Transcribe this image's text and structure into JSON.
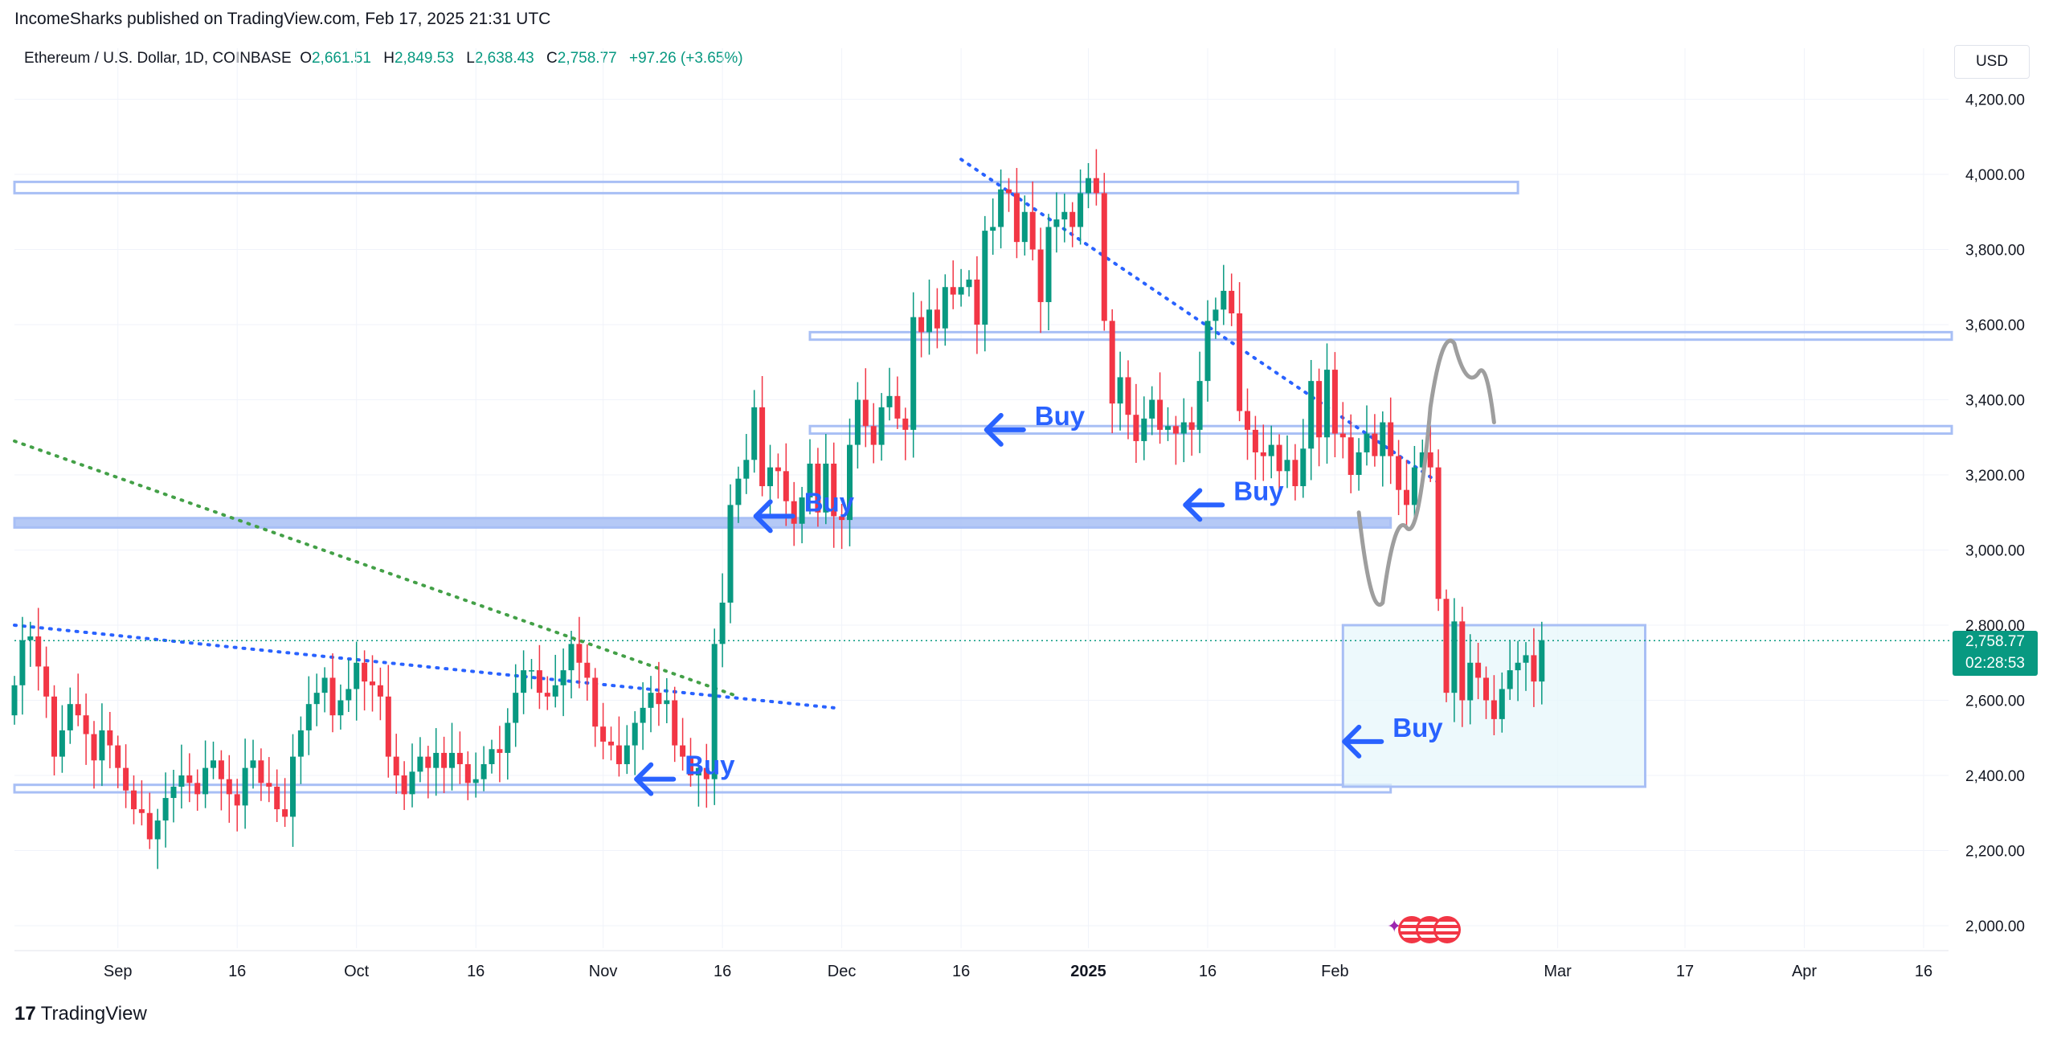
{
  "header": {
    "published": "IncomeSharks published on TradingView.com, Feb 17, 2025 21:31 UTC",
    "symbol": "Ethereum / U.S. Dollar, 1D, COINBASE",
    "open_label": "O",
    "open": "2,661.51",
    "high_label": "H",
    "high": "2,849.53",
    "low_label": "L",
    "low": "2,638.43",
    "close_label": "C",
    "close": "2,758.77",
    "change": "+97.26 (+3.65%)"
  },
  "currency": "USD",
  "price_badge": {
    "price": "2,758.77",
    "countdown": "02:28:53"
  },
  "footer": {
    "logo_text": "TradingView"
  },
  "colors": {
    "up": "#089981",
    "down": "#f23645",
    "zone": "#a8bff5",
    "arrow": "#2962ff",
    "path": "#9e9e9e",
    "bg": "#ffffff"
  },
  "chart_data": {
    "type": "candlestick",
    "ylim": [
      1950,
      4280
    ],
    "yticks": [
      2000,
      2200,
      2400,
      2600,
      2800,
      3000,
      3200,
      3400,
      3600,
      3800,
      4000,
      4200
    ],
    "ytick_labels": [
      "2,000.00",
      "2,200.00",
      "2,400.00",
      "2,600.00",
      "2,800.00",
      "3,000.00",
      "3,200.00",
      "3,400.00",
      "3,600.00",
      "3,800.00",
      "4,000.00",
      "4,200.00"
    ],
    "x_start": "2024-08-19",
    "xticks": [
      {
        "label": "Sep",
        "date": "2024-09-01"
      },
      {
        "label": "16",
        "date": "2024-09-16"
      },
      {
        "label": "Oct",
        "date": "2024-10-01"
      },
      {
        "label": "16",
        "date": "2024-10-16"
      },
      {
        "label": "Nov",
        "date": "2024-11-01"
      },
      {
        "label": "16",
        "date": "2024-11-16"
      },
      {
        "label": "Dec",
        "date": "2024-12-01"
      },
      {
        "label": "16",
        "date": "2024-12-16"
      },
      {
        "label": "2025",
        "date": "2025-01-01",
        "bold": true
      },
      {
        "label": "16",
        "date": "2025-01-16"
      },
      {
        "label": "Feb",
        "date": "2025-02-01"
      },
      {
        "label": "Mar",
        "date": "2025-03-01"
      },
      {
        "label": "17",
        "date": "2025-03-17"
      },
      {
        "label": "Apr",
        "date": "2025-04-01"
      },
      {
        "label": "16",
        "date": "2025-04-16"
      }
    ],
    "last_price": 2758.77,
    "closes": [
      2640,
      2760,
      2770,
      2690,
      2610,
      2450,
      2520,
      2590,
      2560,
      2510,
      2440,
      2520,
      2480,
      2420,
      2360,
      2310,
      2300,
      2230,
      2280,
      2340,
      2370,
      2400,
      2380,
      2350,
      2420,
      2440,
      2390,
      2350,
      2320,
      2420,
      2440,
      2380,
      2370,
      2310,
      2290,
      2450,
      2520,
      2590,
      2620,
      2660,
      2560,
      2600,
      2630,
      2700,
      2650,
      2640,
      2610,
      2450,
      2400,
      2350,
      2410,
      2450,
      2420,
      2460,
      2420,
      2460,
      2430,
      2380,
      2390,
      2430,
      2470,
      2460,
      2540,
      2620,
      2680,
      2680,
      2620,
      2610,
      2640,
      2680,
      2750,
      2700,
      2660,
      2530,
      2490,
      2480,
      2430,
      2480,
      2540,
      2580,
      2620,
      2590,
      2600,
      2480,
      2450,
      2400,
      2420,
      2390,
      2750,
      2860,
      3120,
      3190,
      3240,
      3380,
      3170,
      3220,
      3210,
      3130,
      3070,
      3140,
      3230,
      3100,
      3230,
      3090,
      3080,
      3280,
      3400,
      3330,
      3280,
      3380,
      3410,
      3350,
      3320,
      3620,
      3580,
      3640,
      3590,
      3700,
      3680,
      3700,
      3720,
      3600,
      3850,
      3860,
      3960,
      3950,
      3820,
      3900,
      3800,
      3660,
      3860,
      3880,
      3900,
      3860,
      3950,
      3990,
      3950,
      3610,
      3390,
      3460,
      3360,
      3290,
      3350,
      3400,
      3320,
      3330,
      3310,
      3340,
      3320,
      3450,
      3610,
      3640,
      3690,
      3630,
      3370,
      3320,
      3260,
      3250,
      3280,
      3210,
      3240,
      3170,
      3270,
      3450,
      3300,
      3480,
      3310,
      3300,
      3200,
      3260,
      3310,
      3250,
      3340,
      3250,
      3160,
      3120,
      3220,
      3260,
      3220,
      2870,
      2620,
      2810,
      2600,
      2700,
      2660,
      2600,
      2550,
      2630,
      2680,
      2700,
      2720,
      2650,
      2760
    ],
    "bands": [
      {
        "from": "2024-08-19",
        "to": "2025-02-24",
        "y1": 3950,
        "y2": 3980,
        "fill": false
      },
      {
        "from": "2024-11-27",
        "to": "2025-05-02",
        "y1": 3560,
        "y2": 3580,
        "fill": false
      },
      {
        "from": "2024-11-27",
        "to": "2025-04-27",
        "y1": 3310,
        "y2": 3330,
        "fill": false
      },
      {
        "from": "2024-08-19",
        "to": "2025-02-08",
        "y1": 3060,
        "y2": 3085,
        "fill": true
      },
      {
        "from": "2024-08-19",
        "to": "2025-02-08",
        "y1": 2355,
        "y2": 2375,
        "fill": false
      }
    ],
    "target_box": {
      "from": "2025-02-02",
      "to": "2025-03-12",
      "y1": 2370,
      "y2": 2800
    },
    "trendlines": [
      {
        "from_date": "2024-12-16",
        "from_y": 4040,
        "to_date": "2025-02-14",
        "to_y": 3180,
        "color": "#2962ff"
      },
      {
        "from_date": "2024-08-19",
        "from_y": 2800,
        "to_date": "2024-11-30",
        "to_y": 2580,
        "color": "#2962ff"
      },
      {
        "from_date": "2024-08-19",
        "from_y": 3290,
        "to_date": "2024-11-18",
        "to_y": 2610,
        "color": "#43a047"
      }
    ],
    "projection": [
      {
        "date": "2025-02-04",
        "y": 3100
      },
      {
        "date": "2025-02-07",
        "y": 2860
      },
      {
        "date": "2025-02-10",
        "y": 3060
      },
      {
        "date": "2025-02-13",
        "y": 3380
      },
      {
        "date": "2025-02-16",
        "y": 3550
      },
      {
        "date": "2025-02-19",
        "y": 3470
      },
      {
        "date": "2025-02-21",
        "y": 3340
      }
    ],
    "annotations": [
      {
        "text": "Buy",
        "date": "2024-11-05",
        "y": 2390
      },
      {
        "text": "Buy",
        "date": "2024-11-20",
        "y": 3090
      },
      {
        "text": "Buy",
        "date": "2024-12-19",
        "y": 3320
      },
      {
        "text": "Buy",
        "date": "2025-01-13",
        "y": 3120
      },
      {
        "text": "Buy",
        "date": "2025-02-02",
        "y": 2490
      }
    ]
  }
}
